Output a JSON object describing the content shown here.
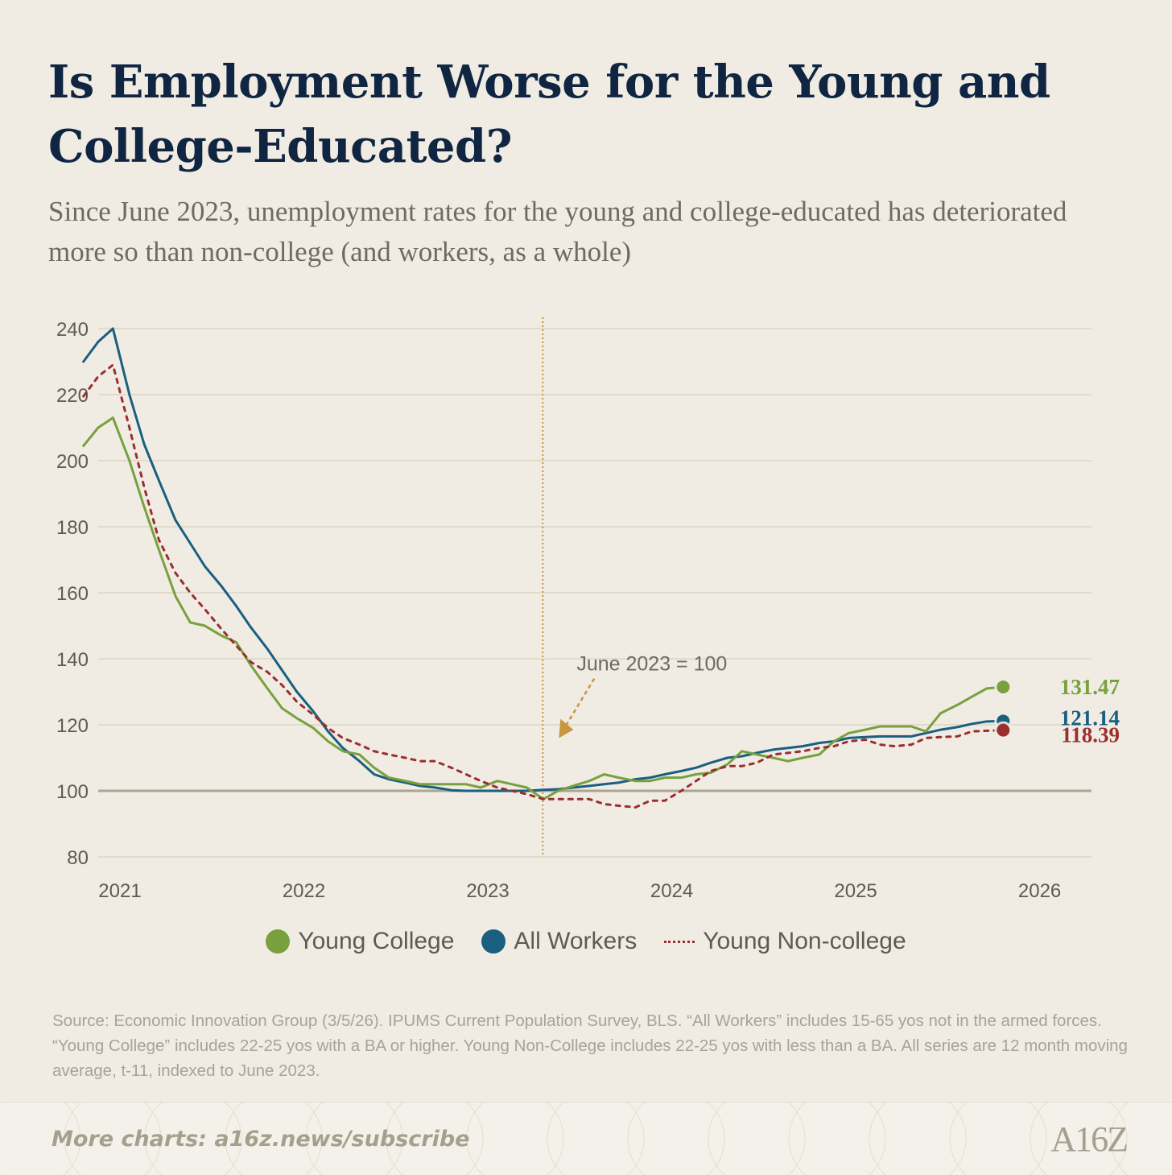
{
  "title": "Is Employment Worse for the Young and College-Educated?",
  "subtitle": "Since June 2023, unemployment rates for the young and college-educated has deteriorated more so than non-college (and workers, as a whole)",
  "colors": {
    "young_college": "#79a03e",
    "all_workers": "#1a5f80",
    "young_noncollege": "#9b2f2f",
    "annotation": "#c9953e",
    "baseline": "#aea493",
    "grid": "#dcd5c4"
  },
  "chart_data": {
    "type": "line",
    "title": "Is Employment Worse for the Young and College-Educated?",
    "xlabel": "",
    "ylabel": "",
    "xlim": [
      2021,
      2026.4
    ],
    "ylim": [
      80,
      240
    ],
    "x_ticks": [
      2021,
      2022,
      2023,
      2024,
      2025,
      2026
    ],
    "x_tick_labels": [
      "2021",
      "2022",
      "2023",
      "2024",
      "2025",
      "2026"
    ],
    "y_ticks": [
      80,
      100,
      120,
      140,
      160,
      180,
      200,
      220,
      240
    ],
    "y_tick_labels": [
      "80",
      "100",
      "120",
      "140",
      "160",
      "180",
      "200",
      "220",
      "240"
    ],
    "baseline": 100,
    "annotation": {
      "x": 2023.417,
      "text": "June 2023 = 100"
    },
    "series": [
      {
        "name": "Young College",
        "style": "solid",
        "end_label": "131.47",
        "end_value": 131.47,
        "points": [
          [
            2020.92,
            204.5
          ],
          [
            2021.0,
            210
          ],
          [
            2021.08,
            213
          ],
          [
            2021.17,
            200
          ],
          [
            2021.25,
            186
          ],
          [
            2021.33,
            173
          ],
          [
            2021.42,
            159
          ],
          [
            2021.5,
            151
          ],
          [
            2021.58,
            150
          ],
          [
            2021.67,
            147
          ],
          [
            2021.75,
            145
          ],
          [
            2021.83,
            138
          ],
          [
            2021.92,
            131
          ],
          [
            2022.0,
            125
          ],
          [
            2022.08,
            122
          ],
          [
            2022.17,
            119
          ],
          [
            2022.25,
            115
          ],
          [
            2022.33,
            112
          ],
          [
            2022.42,
            111
          ],
          [
            2022.5,
            107
          ],
          [
            2022.58,
            104
          ],
          [
            2022.67,
            103
          ],
          [
            2022.75,
            102
          ],
          [
            2022.83,
            102
          ],
          [
            2022.92,
            102
          ],
          [
            2023.0,
            102
          ],
          [
            2023.08,
            101
          ],
          [
            2023.17,
            103
          ],
          [
            2023.25,
            102
          ],
          [
            2023.33,
            101
          ],
          [
            2023.42,
            97.5
          ],
          [
            2023.5,
            100
          ],
          [
            2023.58,
            101.5
          ],
          [
            2023.67,
            103
          ],
          [
            2023.75,
            105
          ],
          [
            2023.83,
            104
          ],
          [
            2023.92,
            103
          ],
          [
            2024.0,
            103
          ],
          [
            2024.08,
            104
          ],
          [
            2024.17,
            104
          ],
          [
            2024.25,
            105
          ],
          [
            2024.33,
            105.5
          ],
          [
            2024.42,
            108
          ],
          [
            2024.5,
            112
          ],
          [
            2024.58,
            111
          ],
          [
            2024.67,
            110
          ],
          [
            2024.75,
            109
          ],
          [
            2024.83,
            110
          ],
          [
            2024.92,
            111
          ],
          [
            2025.0,
            115
          ],
          [
            2025.08,
            117.5
          ],
          [
            2025.17,
            118.5
          ],
          [
            2025.25,
            119.5
          ],
          [
            2025.33,
            119.5
          ],
          [
            2025.42,
            119.5
          ],
          [
            2025.5,
            118
          ],
          [
            2025.58,
            123.5
          ],
          [
            2025.67,
            126
          ],
          [
            2025.75,
            128.5
          ],
          [
            2025.83,
            131
          ],
          [
            2025.92,
            131.47
          ]
        ]
      },
      {
        "name": "All Workers",
        "style": "solid",
        "end_label": "121.14",
        "end_value": 121.14,
        "points": [
          [
            2020.92,
            230
          ],
          [
            2021.0,
            236
          ],
          [
            2021.08,
            240
          ],
          [
            2021.17,
            220
          ],
          [
            2021.25,
            205
          ],
          [
            2021.33,
            194
          ],
          [
            2021.42,
            182
          ],
          [
            2021.5,
            175
          ],
          [
            2021.58,
            168
          ],
          [
            2021.67,
            162
          ],
          [
            2021.75,
            156
          ],
          [
            2021.83,
            149.5
          ],
          [
            2021.92,
            143
          ],
          [
            2022.0,
            136.5
          ],
          [
            2022.08,
            130
          ],
          [
            2022.17,
            124
          ],
          [
            2022.25,
            118
          ],
          [
            2022.33,
            113
          ],
          [
            2022.42,
            109
          ],
          [
            2022.5,
            105
          ],
          [
            2022.58,
            103.5
          ],
          [
            2022.67,
            102.5
          ],
          [
            2022.75,
            101.5
          ],
          [
            2022.83,
            101
          ],
          [
            2022.92,
            100.2
          ],
          [
            2023.0,
            100
          ],
          [
            2023.08,
            100
          ],
          [
            2023.17,
            100
          ],
          [
            2023.25,
            100
          ],
          [
            2023.33,
            100
          ],
          [
            2023.42,
            100.3
          ],
          [
            2023.5,
            100.5
          ],
          [
            2023.58,
            101
          ],
          [
            2023.67,
            101.5
          ],
          [
            2023.75,
            102
          ],
          [
            2023.83,
            102.5
          ],
          [
            2023.92,
            103.5
          ],
          [
            2024.0,
            104
          ],
          [
            2024.08,
            105
          ],
          [
            2024.17,
            106
          ],
          [
            2024.25,
            107
          ],
          [
            2024.33,
            108.5
          ],
          [
            2024.42,
            110
          ],
          [
            2024.5,
            110.5
          ],
          [
            2024.58,
            111.5
          ],
          [
            2024.67,
            112.5
          ],
          [
            2024.75,
            113
          ],
          [
            2024.83,
            113.5
          ],
          [
            2024.92,
            114.5
          ],
          [
            2025.0,
            115
          ],
          [
            2025.08,
            116
          ],
          [
            2025.17,
            116.3
          ],
          [
            2025.25,
            116.5
          ],
          [
            2025.33,
            116.5
          ],
          [
            2025.42,
            116.5
          ],
          [
            2025.5,
            117.5
          ],
          [
            2025.58,
            118.5
          ],
          [
            2025.67,
            119.3
          ],
          [
            2025.75,
            120.3
          ],
          [
            2025.83,
            121
          ],
          [
            2025.92,
            121.14
          ]
        ]
      },
      {
        "name": "Young Non-college",
        "style": "dotted",
        "end_label": "118.39",
        "end_value": 118.39,
        "points": [
          [
            2020.92,
            219.5
          ],
          [
            2021.0,
            225.5
          ],
          [
            2021.08,
            229
          ],
          [
            2021.17,
            210
          ],
          [
            2021.25,
            192
          ],
          [
            2021.33,
            176
          ],
          [
            2021.42,
            166
          ],
          [
            2021.5,
            160
          ],
          [
            2021.58,
            155
          ],
          [
            2021.67,
            149
          ],
          [
            2021.75,
            144
          ],
          [
            2021.83,
            139
          ],
          [
            2021.92,
            136
          ],
          [
            2022.0,
            132
          ],
          [
            2022.08,
            127
          ],
          [
            2022.17,
            123
          ],
          [
            2022.25,
            119
          ],
          [
            2022.33,
            116
          ],
          [
            2022.42,
            114
          ],
          [
            2022.5,
            112
          ],
          [
            2022.58,
            111
          ],
          [
            2022.67,
            110
          ],
          [
            2022.75,
            109
          ],
          [
            2022.83,
            109
          ],
          [
            2022.92,
            107
          ],
          [
            2023.0,
            105
          ],
          [
            2023.08,
            103
          ],
          [
            2023.17,
            101
          ],
          [
            2023.25,
            100
          ],
          [
            2023.33,
            99
          ],
          [
            2023.42,
            97.5
          ],
          [
            2023.5,
            97.5
          ],
          [
            2023.58,
            97.5
          ],
          [
            2023.67,
            97.5
          ],
          [
            2023.75,
            96
          ],
          [
            2023.83,
            95.5
          ],
          [
            2023.92,
            95
          ],
          [
            2024.0,
            97
          ],
          [
            2024.08,
            97
          ],
          [
            2024.17,
            100
          ],
          [
            2024.25,
            103
          ],
          [
            2024.33,
            106
          ],
          [
            2024.42,
            107.5
          ],
          [
            2024.5,
            107.5
          ],
          [
            2024.58,
            108.5
          ],
          [
            2024.67,
            111
          ],
          [
            2024.75,
            111.5
          ],
          [
            2024.83,
            112
          ],
          [
            2024.92,
            113
          ],
          [
            2025.0,
            113.5
          ],
          [
            2025.08,
            115
          ],
          [
            2025.17,
            115.5
          ],
          [
            2025.25,
            114
          ],
          [
            2025.33,
            113.5
          ],
          [
            2025.42,
            114
          ],
          [
            2025.5,
            116
          ],
          [
            2025.58,
            116.3
          ],
          [
            2025.67,
            116.5
          ],
          [
            2025.75,
            118
          ],
          [
            2025.83,
            118.2
          ],
          [
            2025.92,
            118.39
          ]
        ]
      }
    ]
  },
  "legend": [
    {
      "label": "Young College",
      "marker": "dot"
    },
    {
      "label": "All Workers",
      "marker": "dot"
    },
    {
      "label": "Young Non-college",
      "marker": "dotted-line"
    }
  ],
  "source": "Source: Economic Innovation Group (3/5/26). IPUMS Current Population Survey, BLS. “All Workers” includes 15-65 yos not in the armed forces. “Young College” includes 22-25 yos with a BA or higher. Young Non-College includes 22-25 yos with less than a BA. All series are 12 month moving average, t-11, indexed to June 2023.",
  "footer": {
    "more_charts": "More charts: a16z.news/subscribe",
    "logo": "A16Z"
  }
}
